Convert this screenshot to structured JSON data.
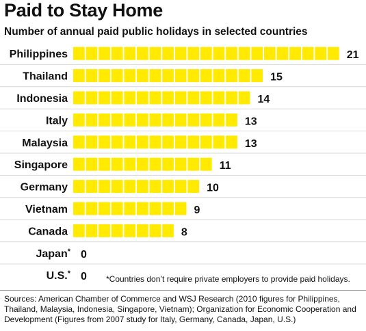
{
  "title": "Paid to Stay Home",
  "subtitle": "Number of annual paid public holidays in selected countries",
  "footnote": "*Countries don’t require private employers to provide paid holidays.",
  "sources": "Sources: American Chamber of Commerce and WSJ Research (2010 figures for Philippines, Thailand, Malaysia, Indonesia, Singapore, Vietnam); Organization for Economic Cooperation and Development (Figures from 2007 study for Italy, Germany, Canada, Japan, U.S.)",
  "colors": {
    "bar": "#ffea00",
    "background": "#ffffff",
    "text": "#111111",
    "row_divider": "#d8d8d8",
    "rule": "#9a9a9a"
  },
  "chart_data": {
    "type": "bar",
    "orientation": "horizontal",
    "categories": [
      "Philippines",
      "Thailand",
      "Indonesia",
      "Italy",
      "Malaysia",
      "Singapore",
      "Germany",
      "Vietnam",
      "Canada",
      "Japan",
      "U.S."
    ],
    "asterisk": [
      false,
      false,
      false,
      false,
      false,
      false,
      false,
      false,
      false,
      true,
      true
    ],
    "values": [
      21,
      15,
      14,
      13,
      13,
      11,
      10,
      9,
      8,
      0,
      0
    ],
    "unit": "one segment per holiday",
    "title": "Paid to Stay Home",
    "subtitle": "Number of annual paid public holidays in selected countries",
    "xlabel": "",
    "ylabel": "",
    "xlim": [
      0,
      21
    ],
    "grid": false,
    "legend": "none",
    "data_labels": true
  }
}
